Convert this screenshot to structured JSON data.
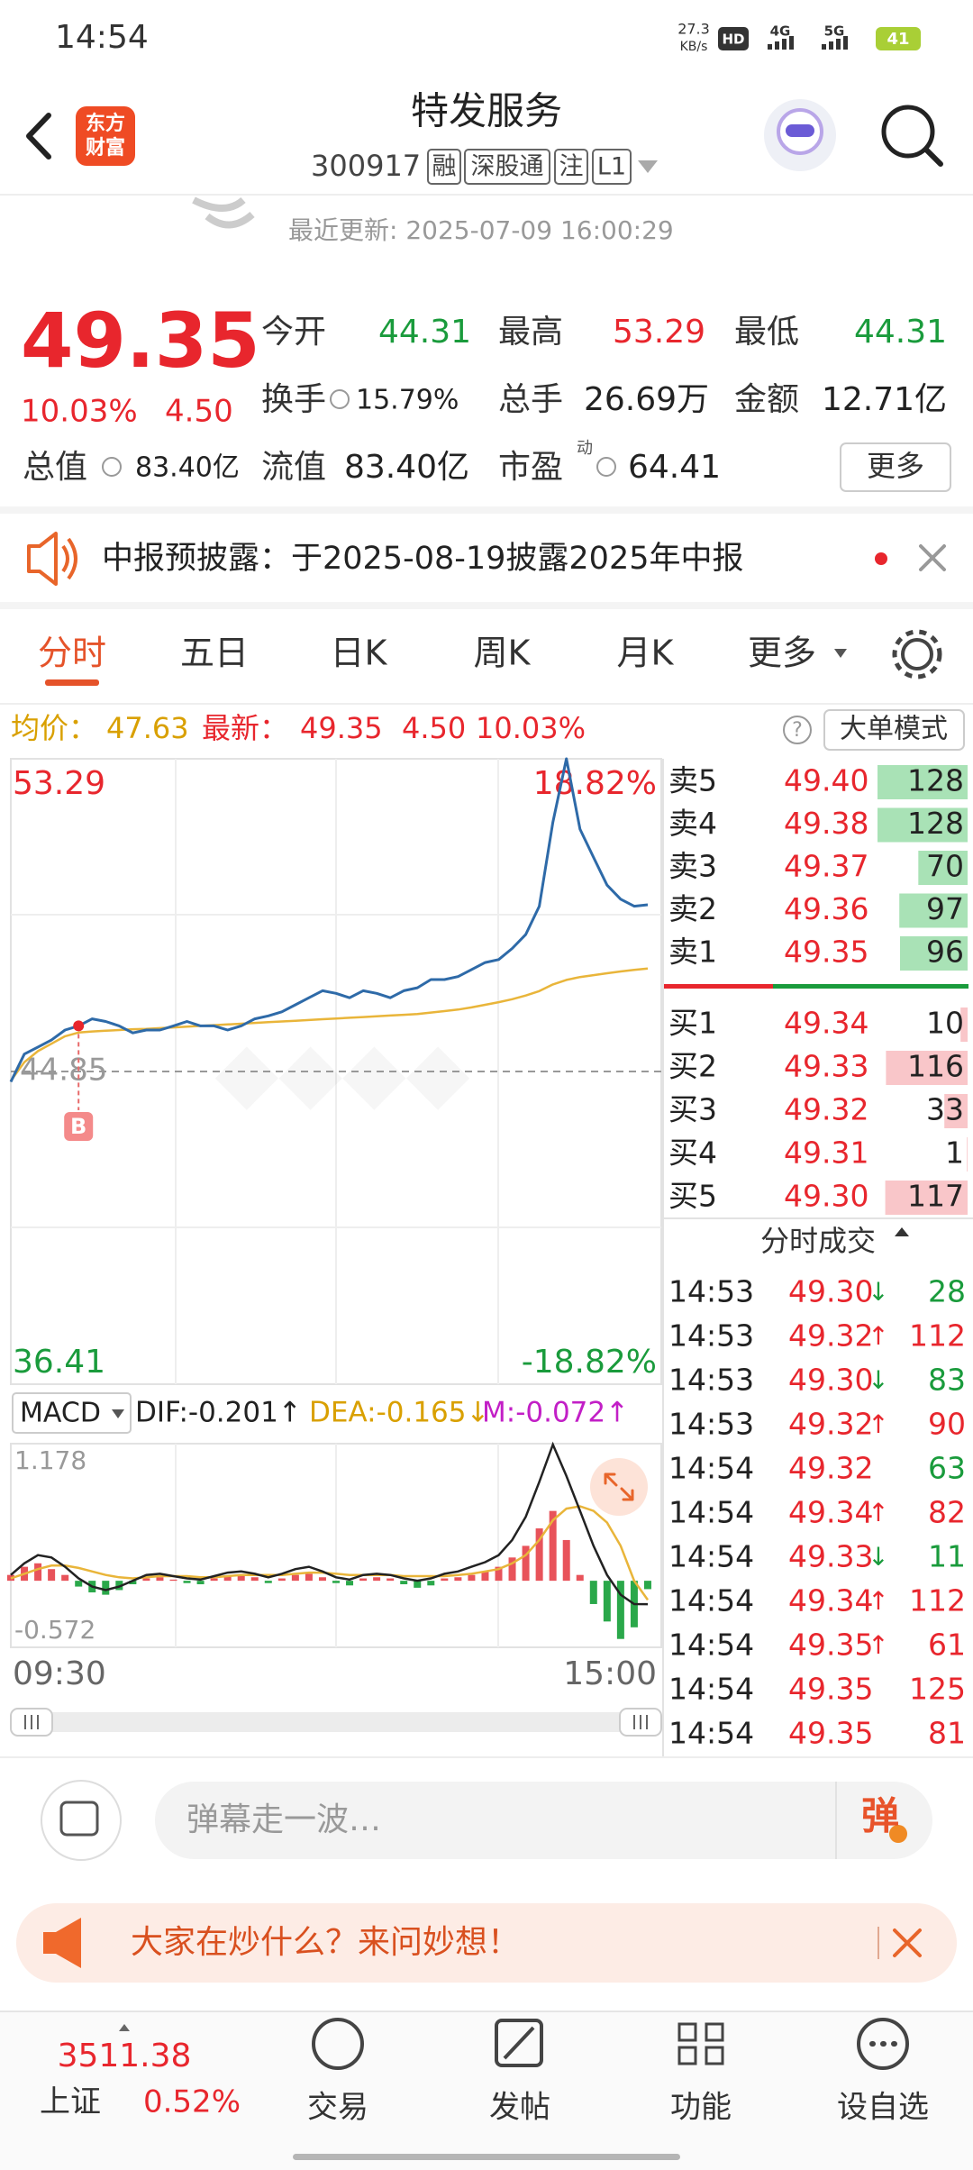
{
  "status_bar": {
    "time": "14:54",
    "net_speed": "27.3",
    "net_unit": "KB/s",
    "indicators": [
      "HD",
      "4G",
      "5G"
    ],
    "battery": "41"
  },
  "header": {
    "logo": [
      "东方",
      "财富"
    ],
    "title": "特发服务",
    "code": "300917",
    "tags": [
      "融",
      "深股通",
      "注",
      "L1"
    ]
  },
  "update_time": "最近更新: 2025-07-09 16:00:29",
  "quote": {
    "price": "49.35",
    "change_pct": "10.03%",
    "change": "4.50",
    "fields": [
      {
        "label": "今开",
        "value": "44.31"
      },
      {
        "label": "最高",
        "value": "53.29"
      },
      {
        "label": "最低",
        "value": "44.31"
      },
      {
        "label": "换手",
        "value": "15.79%"
      },
      {
        "label": "总手",
        "value": "26.69万"
      },
      {
        "label": "金额",
        "value": "12.71亿"
      },
      {
        "label": "总值",
        "value": "83.40亿"
      },
      {
        "label": "流值",
        "value": "83.40亿"
      },
      {
        "label": "市盈",
        "superscript": "动",
        "value": "64.41"
      }
    ],
    "more": "更多"
  },
  "notice": "中报预披露：于2025-08-19披露2025年中报",
  "tabs": [
    "分时",
    "五日",
    "日K",
    "周K",
    "月K",
    "更多"
  ],
  "intraday": {
    "avg_label": "均价：",
    "avg": "47.63",
    "latest_label": "最新：",
    "latest": "49.35",
    "change": "4.50",
    "change_pct": "10.03%",
    "help": "?",
    "mode_button": "大单模式",
    "ylim": [
      36.41,
      53.29
    ],
    "top_pct": "18.82%",
    "bottom_pct": "-18.82%",
    "prev_close": 44.85,
    "buy_marker": "B",
    "x_labels": [
      "09:30",
      "15:00"
    ],
    "price": [
      44.57,
      45.32,
      45.51,
      45.7,
      45.97,
      46.08,
      46.27,
      46.2,
      46.08,
      45.89,
      45.97,
      45.97,
      46.08,
      46.2,
      46.08,
      46.08,
      45.97,
      46.08,
      46.27,
      46.35,
      46.46,
      46.65,
      46.84,
      47.03,
      46.96,
      46.84,
      47.03,
      46.96,
      46.84,
      47.03,
      47.11,
      47.33,
      47.33,
      47.41,
      47.6,
      47.79,
      47.87,
      48.17,
      48.55,
      49.31,
      51.58,
      53.29,
      51.39,
      50.63,
      49.88,
      49.5,
      49.31,
      49.35
    ],
    "avg_price": [
      44.6,
      45.1,
      45.4,
      45.6,
      45.8,
      45.9,
      45.93,
      45.95,
      45.97,
      45.99,
      46.0,
      46.02,
      46.04,
      46.06,
      46.08,
      46.1,
      46.12,
      46.14,
      46.16,
      46.18,
      46.2,
      46.22,
      46.24,
      46.26,
      46.28,
      46.3,
      46.32,
      46.34,
      46.36,
      46.38,
      46.4,
      46.44,
      46.48,
      46.52,
      46.58,
      46.65,
      46.72,
      46.8,
      46.9,
      47.02,
      47.2,
      47.32,
      47.4,
      47.45,
      47.5,
      47.55,
      47.59,
      47.63
    ]
  },
  "macd": {
    "name": "MACD",
    "dif_label": "DIF:-0.201↑",
    "dea_label": "DEA:-0.165↓",
    "m_label": "M:-0.072↑",
    "ylim": [
      -0.572,
      1.178
    ],
    "m": [
      0.05,
      0.12,
      0.15,
      0.1,
      0.05,
      -0.05,
      -0.1,
      -0.12,
      -0.08,
      -0.03,
      0.02,
      0.03,
      0.01,
      -0.02,
      -0.03,
      0.02,
      0.04,
      0.05,
      0.03,
      -0.02,
      0.02,
      0.05,
      0.06,
      0.03,
      -0.02,
      -0.04,
      0.02,
      0.03,
      0.02,
      -0.03,
      -0.06,
      -0.04,
      0.02,
      0.03,
      0.05,
      0.08,
      0.12,
      0.2,
      0.3,
      0.45,
      0.6,
      0.35,
      0.05,
      -0.2,
      -0.35,
      -0.5,
      -0.4,
      -0.072
    ],
    "dif": [
      0.05,
      0.15,
      0.22,
      0.2,
      0.12,
      0.02,
      -0.05,
      -0.08,
      -0.05,
      0.0,
      0.05,
      0.06,
      0.04,
      0.02,
      0.01,
      0.04,
      0.07,
      0.08,
      0.06,
      0.03,
      0.06,
      0.1,
      0.12,
      0.08,
      0.03,
      0.01,
      0.05,
      0.06,
      0.05,
      0.02,
      0.0,
      0.02,
      0.06,
      0.08,
      0.12,
      0.16,
      0.22,
      0.35,
      0.55,
      0.85,
      1.17,
      0.9,
      0.6,
      0.3,
      0.05,
      -0.12,
      -0.2,
      -0.201
    ],
    "dea": [
      0.02,
      0.06,
      0.1,
      0.13,
      0.13,
      0.11,
      0.08,
      0.05,
      0.03,
      0.02,
      0.03,
      0.04,
      0.04,
      0.04,
      0.03,
      0.03,
      0.04,
      0.05,
      0.05,
      0.05,
      0.05,
      0.06,
      0.07,
      0.07,
      0.06,
      0.05,
      0.05,
      0.05,
      0.05,
      0.04,
      0.04,
      0.04,
      0.04,
      0.05,
      0.06,
      0.08,
      0.1,
      0.15,
      0.22,
      0.35,
      0.52,
      0.62,
      0.64,
      0.6,
      0.5,
      0.3,
      0.0,
      -0.165
    ]
  },
  "order_book": {
    "asks": [
      {
        "label": "卖5",
        "price": "49.40",
        "volume": 128
      },
      {
        "label": "卖4",
        "price": "49.38",
        "volume": 128
      },
      {
        "label": "卖3",
        "price": "49.37",
        "volume": 70
      },
      {
        "label": "卖2",
        "price": "49.36",
        "volume": 97
      },
      {
        "label": "卖1",
        "price": "49.35",
        "volume": 96
      }
    ],
    "bids": [
      {
        "label": "买1",
        "price": "49.34",
        "volume": 10
      },
      {
        "label": "买2",
        "price": "49.33",
        "volume": 116
      },
      {
        "label": "买3",
        "price": "49.32",
        "volume": 33
      },
      {
        "label": "买4",
        "price": "49.31",
        "volume": 1
      },
      {
        "label": "买5",
        "price": "49.30",
        "volume": 117
      }
    ]
  },
  "trades": {
    "title": "分时成交",
    "rows": [
      {
        "time": "14:53",
        "price": "49.30",
        "arrow": "↓",
        "volume": 28,
        "side": "sell"
      },
      {
        "time": "14:53",
        "price": "49.32",
        "arrow": "↑",
        "volume": 112,
        "side": "buy"
      },
      {
        "time": "14:53",
        "price": "49.30",
        "arrow": "↓",
        "volume": 83,
        "side": "sell"
      },
      {
        "time": "14:53",
        "price": "49.32",
        "arrow": "↑",
        "volume": 90,
        "side": "buy"
      },
      {
        "time": "14:54",
        "price": "49.32",
        "volume": 63,
        "side": "sell"
      },
      {
        "time": "14:54",
        "price": "49.34",
        "arrow": "↑",
        "volume": 82,
        "side": "buy"
      },
      {
        "time": "14:54",
        "price": "49.33",
        "arrow": "↓",
        "volume": 11,
        "side": "sell"
      },
      {
        "time": "14:54",
        "price": "49.34",
        "arrow": "↑",
        "volume": 112,
        "side": "buy"
      },
      {
        "time": "14:54",
        "price": "49.35",
        "arrow": "↑",
        "volume": 61,
        "side": "buy"
      },
      {
        "time": "14:54",
        "price": "49.35",
        "volume": 125,
        "side": "buy"
      },
      {
        "time": "14:54",
        "price": "49.35",
        "volume": 81,
        "side": "buy"
      }
    ]
  },
  "comment_bar": {
    "placeholder": "弹幕走一波…",
    "button": "弹"
  },
  "banner": "大家在炒什么？来问妙想！",
  "bottom_nav": {
    "index_value": "3511.38",
    "index_name": "上证",
    "index_change": "0.52%",
    "items": [
      "交易",
      "发帖",
      "功能",
      "设自选"
    ]
  }
}
